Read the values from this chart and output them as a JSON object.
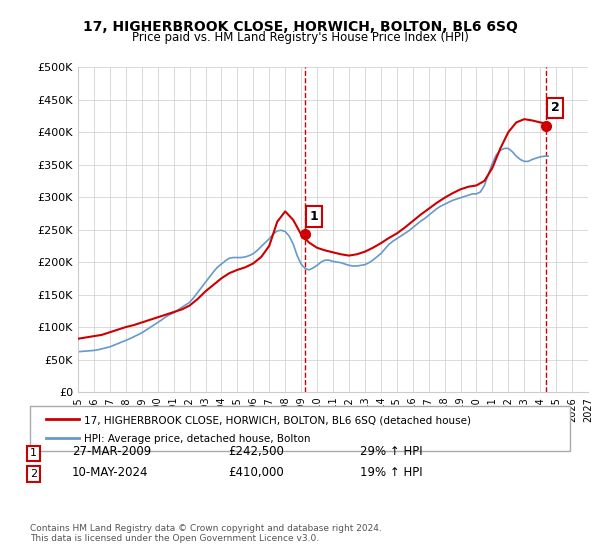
{
  "title": "17, HIGHERBROOK CLOSE, HORWICH, BOLTON, BL6 6SQ",
  "subtitle": "Price paid vs. HM Land Registry's House Price Index (HPI)",
  "xlabel": "",
  "ylabel": "",
  "ylim": [
    0,
    500000
  ],
  "yticks": [
    0,
    50000,
    100000,
    150000,
    200000,
    250000,
    300000,
    350000,
    400000,
    450000,
    500000
  ],
  "ytick_labels": [
    "£0",
    "£50K",
    "£100K",
    "£150K",
    "£200K",
    "£250K",
    "£300K",
    "£350K",
    "£400K",
    "£450K",
    "£500K"
  ],
  "xtick_years": [
    1995,
    1996,
    1997,
    1998,
    1999,
    2000,
    2001,
    2002,
    2003,
    2004,
    2005,
    2006,
    2007,
    2008,
    2009,
    2010,
    2011,
    2012,
    2013,
    2014,
    2015,
    2016,
    2017,
    2018,
    2019,
    2020,
    2021,
    2022,
    2023,
    2024,
    2025,
    2026,
    2027
  ],
  "xlim_start": 1995.0,
  "xlim_end": 2027.0,
  "hpi_color": "#6699cc",
  "price_color": "#cc0000",
  "vline_color": "#cc0000",
  "vline_style": "--",
  "sale1_x": 2009.23,
  "sale1_y": 242500,
  "sale1_label": "1",
  "sale2_x": 2024.36,
  "sale2_y": 410000,
  "sale2_label": "2",
  "legend_line1": "17, HIGHERBROOK CLOSE, HORWICH, BOLTON, BL6 6SQ (detached house)",
  "legend_line2": "HPI: Average price, detached house, Bolton",
  "table_row1_num": "1",
  "table_row1_date": "27-MAR-2009",
  "table_row1_price": "£242,500",
  "table_row1_hpi": "29% ↑ HPI",
  "table_row2_num": "2",
  "table_row2_date": "10-MAY-2024",
  "table_row2_price": "£410,000",
  "table_row2_hpi": "19% ↑ HPI",
  "footer": "Contains HM Land Registry data © Crown copyright and database right 2024.\nThis data is licensed under the Open Government Licence v3.0.",
  "bg_color": "#ffffff",
  "plot_bg_color": "#ffffff",
  "grid_color": "#cccccc",
  "hpi_data_x": [
    1995.0,
    1995.25,
    1995.5,
    1995.75,
    1996.0,
    1996.25,
    1996.5,
    1996.75,
    1997.0,
    1997.25,
    1997.5,
    1997.75,
    1998.0,
    1998.25,
    1998.5,
    1998.75,
    1999.0,
    1999.25,
    1999.5,
    1999.75,
    2000.0,
    2000.25,
    2000.5,
    2000.75,
    2001.0,
    2001.25,
    2001.5,
    2001.75,
    2002.0,
    2002.25,
    2002.5,
    2002.75,
    2003.0,
    2003.25,
    2003.5,
    2003.75,
    2004.0,
    2004.25,
    2004.5,
    2004.75,
    2005.0,
    2005.25,
    2005.5,
    2005.75,
    2006.0,
    2006.25,
    2006.5,
    2006.75,
    2007.0,
    2007.25,
    2007.5,
    2007.75,
    2008.0,
    2008.25,
    2008.5,
    2008.75,
    2009.0,
    2009.25,
    2009.5,
    2009.75,
    2010.0,
    2010.25,
    2010.5,
    2010.75,
    2011.0,
    2011.25,
    2011.5,
    2011.75,
    2012.0,
    2012.25,
    2012.5,
    2012.75,
    2013.0,
    2013.25,
    2013.5,
    2013.75,
    2014.0,
    2014.25,
    2014.5,
    2014.75,
    2015.0,
    2015.25,
    2015.5,
    2015.75,
    2016.0,
    2016.25,
    2016.5,
    2016.75,
    2017.0,
    2017.25,
    2017.5,
    2017.75,
    2018.0,
    2018.25,
    2018.5,
    2018.75,
    2019.0,
    2019.25,
    2019.5,
    2019.75,
    2020.0,
    2020.25,
    2020.5,
    2020.75,
    2021.0,
    2021.25,
    2021.5,
    2021.75,
    2022.0,
    2022.25,
    2022.5,
    2022.75,
    2023.0,
    2023.25,
    2023.5,
    2023.75,
    2024.0,
    2024.25,
    2024.5
  ],
  "hpi_data_y": [
    62000,
    62500,
    63000,
    63500,
    64000,
    65000,
    66500,
    68000,
    69500,
    72000,
    74500,
    77000,
    79500,
    82000,
    85000,
    88000,
    91000,
    95000,
    99000,
    103000,
    107000,
    111000,
    115500,
    119000,
    122000,
    126000,
    130000,
    134000,
    138000,
    145000,
    153000,
    161000,
    169000,
    177000,
    185000,
    192000,
    197000,
    202000,
    206000,
    207000,
    207000,
    207000,
    208000,
    210000,
    213000,
    218000,
    224000,
    230000,
    236000,
    243000,
    248000,
    249000,
    247000,
    240000,
    228000,
    210000,
    197000,
    190000,
    188000,
    191000,
    195000,
    200000,
    203000,
    203000,
    201000,
    200000,
    199000,
    197000,
    195000,
    194000,
    194000,
    195000,
    196000,
    199000,
    203000,
    208000,
    213000,
    220000,
    227000,
    232000,
    236000,
    240000,
    244000,
    248000,
    253000,
    258000,
    263000,
    267000,
    272000,
    277000,
    282000,
    286000,
    289000,
    292000,
    295000,
    297000,
    299000,
    301000,
    303000,
    305000,
    305000,
    308000,
    318000,
    335000,
    352000,
    365000,
    372000,
    375000,
    375000,
    370000,
    363000,
    358000,
    355000,
    355000,
    358000,
    360000,
    362000,
    363000,
    363000
  ],
  "price_paid_x": [
    1995.0,
    1995.5,
    1996.0,
    1996.5,
    1997.0,
    1997.5,
    1998.0,
    1998.5,
    1999.0,
    1999.5,
    2000.0,
    2000.5,
    2001.0,
    2001.5,
    2002.0,
    2002.5,
    2003.0,
    2003.5,
    2004.0,
    2004.5,
    2005.0,
    2005.5,
    2006.0,
    2006.5,
    2007.0,
    2007.5,
    2008.0,
    2008.5,
    2009.0,
    2009.5,
    2010.0,
    2010.5,
    2011.0,
    2011.5,
    2012.0,
    2012.5,
    2013.0,
    2013.5,
    2014.0,
    2014.5,
    2015.0,
    2015.5,
    2016.0,
    2016.5,
    2017.0,
    2017.5,
    2018.0,
    2018.5,
    2019.0,
    2019.5,
    2020.0,
    2020.5,
    2021.0,
    2021.5,
    2022.0,
    2022.5,
    2023.0,
    2023.5,
    2024.0,
    2024.5
  ],
  "price_paid_y": [
    82000,
    84000,
    86000,
    88000,
    92000,
    96000,
    100000,
    103000,
    107000,
    111000,
    115000,
    119000,
    123000,
    127000,
    133000,
    143000,
    155000,
    165000,
    175000,
    183000,
    188000,
    192000,
    198000,
    208000,
    225000,
    262000,
    278000,
    265000,
    242500,
    230000,
    222000,
    218000,
    215000,
    212000,
    210000,
    212000,
    216000,
    222000,
    229000,
    237000,
    244000,
    253000,
    263000,
    273000,
    282000,
    291000,
    299000,
    306000,
    312000,
    316000,
    318000,
    325000,
    345000,
    375000,
    400000,
    415000,
    420000,
    418000,
    415000,
    413000
  ]
}
